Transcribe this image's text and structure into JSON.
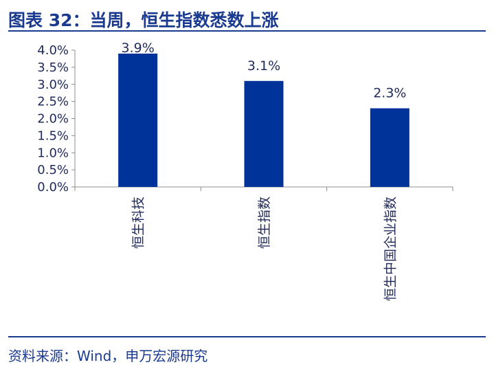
{
  "title": "图表 32：当周，恒生指数悉数上涨",
  "source": "资料来源：Wind，申万宏源研究",
  "colors": {
    "bar": "#003399",
    "text": "#1f2a5a",
    "title": "#1a3a8f"
  },
  "chart_data": {
    "type": "bar",
    "categories": [
      "恒生科技",
      "恒生指数",
      "恒生中国企业指数"
    ],
    "values": [
      3.9,
      3.1,
      2.3
    ],
    "data_labels": [
      "3.9%",
      "3.1%",
      "2.3%"
    ],
    "yticks": [
      "0.0%",
      "0.5%",
      "1.0%",
      "1.5%",
      "2.0%",
      "2.5%",
      "3.0%",
      "3.5%",
      "4.0%"
    ],
    "ylim": [
      0,
      4.0
    ],
    "grid": false,
    "legend": "none",
    "xlabel": "",
    "ylabel": ""
  }
}
